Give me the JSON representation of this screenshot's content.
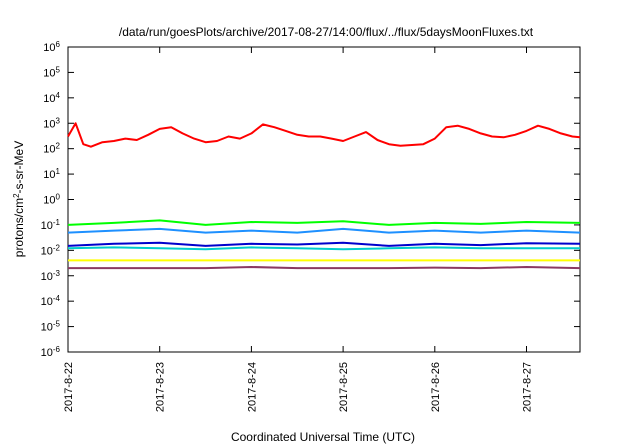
{
  "chart_data": {
    "type": "line",
    "title": "/data/run/goesPlots/archive/2017-08-27/14:00/flux/../flux/5daysMoonFluxes.txt",
    "xlabel": "Coordinated Universal Time (UTC)",
    "ylabel": {
      "prefix": "protons/cm",
      "sup": "2",
      "suffix": "-s-sr-MeV"
    },
    "yscale": "log",
    "ylim": [
      1e-06,
      1000000.0
    ],
    "yticks": [
      {
        "value": 1e-06,
        "base": "10",
        "exp": "-6"
      },
      {
        "value": 1e-05,
        "base": "10",
        "exp": "-5"
      },
      {
        "value": 0.0001,
        "base": "10",
        "exp": "-4"
      },
      {
        "value": 0.001,
        "base": "10",
        "exp": "-3"
      },
      {
        "value": 0.01,
        "base": "10",
        "exp": "-2"
      },
      {
        "value": 0.1,
        "base": "10",
        "exp": "-1"
      },
      {
        "value": 1,
        "base": "10",
        "exp": "0"
      },
      {
        "value": 10.0,
        "base": "10",
        "exp": "1"
      },
      {
        "value": 100.0,
        "base": "10",
        "exp": "2"
      },
      {
        "value": 1000.0,
        "base": "10",
        "exp": "3"
      },
      {
        "value": 10000.0,
        "base": "10",
        "exp": "4"
      },
      {
        "value": 100000.0,
        "base": "10",
        "exp": "5"
      },
      {
        "value": 1000000.0,
        "base": "10",
        "exp": "6"
      }
    ],
    "xlim": [
      "2017-08-22 00:00",
      "2017-08-27 14:00"
    ],
    "xticks": [
      "2017-8-22",
      "2017-8-23",
      "2017-8-24",
      "2017-8-25",
      "2017-8-26",
      "2017-8-27"
    ],
    "grid": false,
    "legend": "none",
    "series": [
      {
        "color": "#ff0000",
        "x": [
          "2017-08-22 00:00",
          "2017-08-22 02:00",
          "2017-08-22 04:00",
          "2017-08-22 06:00",
          "2017-08-22 09:00",
          "2017-08-22 12:00",
          "2017-08-22 15:00",
          "2017-08-22 18:00",
          "2017-08-22 21:00",
          "2017-08-23 00:00",
          "2017-08-23 03:00",
          "2017-08-23 06:00",
          "2017-08-23 09:00",
          "2017-08-23 12:00",
          "2017-08-23 15:00",
          "2017-08-23 18:00",
          "2017-08-23 21:00",
          "2017-08-24 00:00",
          "2017-08-24 03:00",
          "2017-08-24 06:00",
          "2017-08-24 09:00",
          "2017-08-24 12:00",
          "2017-08-24 15:00",
          "2017-08-24 18:00",
          "2017-08-24 21:00",
          "2017-08-25 00:00",
          "2017-08-25 03:00",
          "2017-08-25 06:00",
          "2017-08-25 09:00",
          "2017-08-25 12:00",
          "2017-08-25 15:00",
          "2017-08-25 18:00",
          "2017-08-25 21:00",
          "2017-08-26 00:00",
          "2017-08-26 03:00",
          "2017-08-26 06:00",
          "2017-08-26 09:00",
          "2017-08-26 12:00",
          "2017-08-26 15:00",
          "2017-08-26 18:00",
          "2017-08-26 21:00",
          "2017-08-27 00:00",
          "2017-08-27 03:00",
          "2017-08-27 06:00",
          "2017-08-27 09:00",
          "2017-08-27 12:00",
          "2017-08-27 14:00"
        ],
        "y": [
          300,
          1000,
          150,
          120,
          180,
          200,
          250,
          220,
          350,
          600,
          700,
          400,
          250,
          180,
          200,
          300,
          250,
          400,
          900,
          700,
          500,
          350,
          300,
          300,
          250,
          200,
          300,
          450,
          220,
          150,
          130,
          140,
          150,
          250,
          700,
          800,
          600,
          400,
          300,
          280,
          350,
          500,
          800,
          600,
          400,
          300,
          280
        ]
      },
      {
        "color": "#00ff00",
        "x": [
          "2017-08-22 00:00",
          "2017-08-22 12:00",
          "2017-08-23 00:00",
          "2017-08-23 12:00",
          "2017-08-24 00:00",
          "2017-08-24 12:00",
          "2017-08-25 00:00",
          "2017-08-25 12:00",
          "2017-08-26 00:00",
          "2017-08-26 12:00",
          "2017-08-27 00:00",
          "2017-08-27 14:00"
        ],
        "y": [
          0.1,
          0.12,
          0.15,
          0.1,
          0.13,
          0.12,
          0.14,
          0.1,
          0.12,
          0.11,
          0.13,
          0.12
        ]
      },
      {
        "color": "#1e90ff",
        "x": [
          "2017-08-22 00:00",
          "2017-08-22 12:00",
          "2017-08-23 00:00",
          "2017-08-23 12:00",
          "2017-08-24 00:00",
          "2017-08-24 12:00",
          "2017-08-25 00:00",
          "2017-08-25 12:00",
          "2017-08-26 00:00",
          "2017-08-26 12:00",
          "2017-08-27 00:00",
          "2017-08-27 14:00"
        ],
        "y": [
          0.05,
          0.06,
          0.07,
          0.05,
          0.06,
          0.05,
          0.07,
          0.05,
          0.06,
          0.05,
          0.06,
          0.05
        ]
      },
      {
        "color": "#00cccc",
        "x": [
          "2017-08-22 00:00",
          "2017-08-22 12:00",
          "2017-08-23 00:00",
          "2017-08-23 12:00",
          "2017-08-24 00:00",
          "2017-08-24 12:00",
          "2017-08-25 00:00",
          "2017-08-25 12:00",
          "2017-08-26 00:00",
          "2017-08-26 12:00",
          "2017-08-27 00:00",
          "2017-08-27 14:00"
        ],
        "y": [
          0.012,
          0.013,
          0.012,
          0.011,
          0.013,
          0.012,
          0.011,
          0.012,
          0.013,
          0.012,
          0.012,
          0.012
        ]
      },
      {
        "color": "#0000cc",
        "x": [
          "2017-08-22 00:00",
          "2017-08-22 12:00",
          "2017-08-23 00:00",
          "2017-08-23 12:00",
          "2017-08-24 00:00",
          "2017-08-24 12:00",
          "2017-08-25 00:00",
          "2017-08-25 12:00",
          "2017-08-26 00:00",
          "2017-08-26 12:00",
          "2017-08-27 00:00",
          "2017-08-27 14:00"
        ],
        "y": [
          0.015,
          0.018,
          0.02,
          0.015,
          0.018,
          0.017,
          0.02,
          0.015,
          0.018,
          0.016,
          0.019,
          0.018
        ]
      },
      {
        "color": "#ffff00",
        "x": [
          "2017-08-22 00:00",
          "2017-08-22 12:00",
          "2017-08-23 00:00",
          "2017-08-23 12:00",
          "2017-08-24 00:00",
          "2017-08-24 12:00",
          "2017-08-25 00:00",
          "2017-08-25 12:00",
          "2017-08-26 00:00",
          "2017-08-26 12:00",
          "2017-08-27 00:00",
          "2017-08-27 14:00"
        ],
        "y": [
          0.004,
          0.004,
          0.004,
          0.004,
          0.004,
          0.004,
          0.004,
          0.004,
          0.004,
          0.004,
          0.004,
          0.004
        ]
      },
      {
        "color": "#8b3a62",
        "x": [
          "2017-08-22 00:00",
          "2017-08-22 12:00",
          "2017-08-23 00:00",
          "2017-08-23 12:00",
          "2017-08-24 00:00",
          "2017-08-24 12:00",
          "2017-08-25 00:00",
          "2017-08-25 12:00",
          "2017-08-26 00:00",
          "2017-08-26 12:00",
          "2017-08-27 00:00",
          "2017-08-27 14:00"
        ],
        "y": [
          0.002,
          0.002,
          0.002,
          0.002,
          0.0022,
          0.002,
          0.002,
          0.002,
          0.0021,
          0.002,
          0.0022,
          0.002
        ]
      }
    ]
  }
}
